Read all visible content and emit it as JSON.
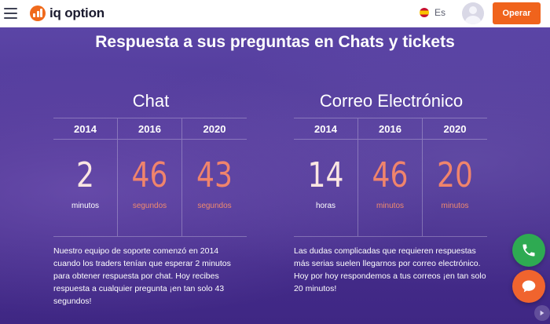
{
  "header": {
    "logo_text": "iq option",
    "language_label": "Es",
    "operar_label": "Operar"
  },
  "hero": {
    "title": "Respuesta a sus preguntas en Chats y tickets"
  },
  "chat": {
    "title": "Chat",
    "columns": [
      {
        "year": "2014",
        "value": "2",
        "unit": "minutos"
      },
      {
        "year": "2016",
        "value": "46",
        "unit": "segundos"
      },
      {
        "year": "2020",
        "value": "43",
        "unit": "segundos"
      }
    ],
    "description": "Nuestro equipo de soporte comenzó en 2014 cuando los traders tenían que esperar 2 minutos para obtener respuesta por chat. Hoy recibes respuesta a cualquier pregunta ¡en tan solo 43 segundos!"
  },
  "email": {
    "title": "Correo Electrónico",
    "columns": [
      {
        "year": "2014",
        "value": "14",
        "unit": "horas"
      },
      {
        "year": "2016",
        "value": "46",
        "unit": "minutos"
      },
      {
        "year": "2020",
        "value": "20",
        "unit": "minutos"
      }
    ],
    "description": "Las dudas complicadas que requieren respuestas más serias suelen llegarnos por correo electrónico. Hoy por hoy respondemos a tus correos ¡en tan solo 20 minutos!"
  },
  "colors": {
    "accent": "#f0631c",
    "highlight_number": "#f0846c",
    "phone_button": "#2eaa52",
    "chat_button": "#f0642e"
  },
  "icons": {
    "menu": "hamburger-menu-icon",
    "logo": "iq-logo-icon",
    "flag": "spain-flag-icon",
    "avatar": "user-avatar-icon",
    "phone": "phone-icon",
    "chat": "chat-bubble-icon",
    "scroll": "play-arrow-icon"
  }
}
